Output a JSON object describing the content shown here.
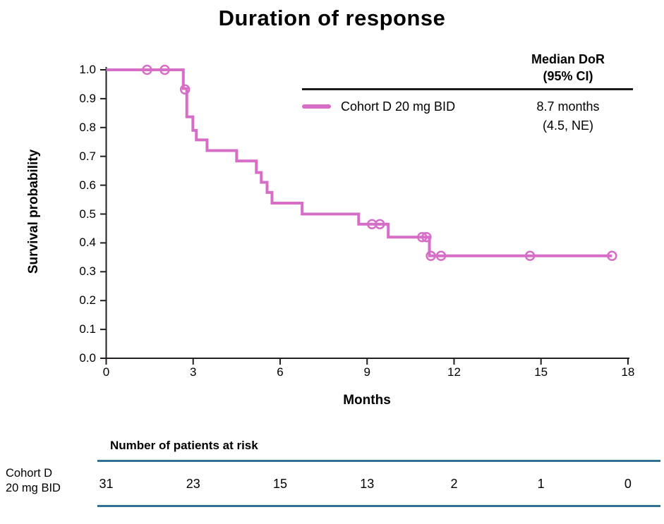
{
  "title": "Duration of response",
  "colors": {
    "series": "#d66ec8",
    "axis": "#231f20",
    "table_rule": "#2f7394",
    "text": "#000000"
  },
  "legend": {
    "header_line1": "Median DoR",
    "header_line2": "(95% CI)",
    "series_label": "Cohort D 20 mg BID",
    "median_line1": "8.7 months",
    "median_line2": "(4.5, NE)"
  },
  "risk_table": {
    "header": "Number of patients at risk",
    "row_label_line1": "Cohort D",
    "row_label_line2": "20 mg BID",
    "count_months": [
      0,
      3,
      6,
      9,
      12,
      15,
      18
    ],
    "counts": [
      "31",
      "23",
      "15",
      "13",
      "2",
      "1",
      "0"
    ]
  },
  "chart_data": {
    "type": "line",
    "subtype": "kaplan-meier-step-curve",
    "title": "Duration of response",
    "xlabel": "Months",
    "ylabel": "Survival probability",
    "xlim": [
      0,
      18
    ],
    "ylim": [
      0.0,
      1.0
    ],
    "x_ticks": [
      0,
      3,
      6,
      9,
      12,
      15,
      18
    ],
    "y_ticks": [
      "1.0",
      "0.9",
      "0.8",
      "0.7",
      "0.6",
      "0.5",
      "0.4",
      "0.3",
      "0.2",
      "0.1",
      "0.0"
    ],
    "grid": false,
    "legend_position": "top-right",
    "series": [
      {
        "name": "Cohort D 20 mg BID",
        "median_dor": "8.7 months (4.5, NE)",
        "steps": [
          {
            "t": 0,
            "s": 1.0
          },
          {
            "t": 2.66,
            "s": 0.935
          },
          {
            "t": 2.78,
            "s": 0.837
          },
          {
            "t": 2.99,
            "s": 0.79
          },
          {
            "t": 3.11,
            "s": 0.757
          },
          {
            "t": 3.48,
            "s": 0.72
          },
          {
            "t": 4.5,
            "s": 0.684
          },
          {
            "t": 5.18,
            "s": 0.644
          },
          {
            "t": 5.35,
            "s": 0.61
          },
          {
            "t": 5.55,
            "s": 0.575
          },
          {
            "t": 5.72,
            "s": 0.538
          },
          {
            "t": 6.76,
            "s": 0.5
          },
          {
            "t": 8.71,
            "s": 0.465
          },
          {
            "t": 9.73,
            "s": 0.42
          },
          {
            "t": 11.15,
            "s": 0.355
          }
        ],
        "end_time": 17.45,
        "censors": [
          {
            "t": 1.41,
            "s": 1.0
          },
          {
            "t": 2.02,
            "s": 1.0
          },
          {
            "t": 2.72,
            "s": 0.932
          },
          {
            "t": 9.17,
            "s": 0.465
          },
          {
            "t": 9.44,
            "s": 0.465
          },
          {
            "t": 10.9,
            "s": 0.42
          },
          {
            "t": 11.05,
            "s": 0.42
          },
          {
            "t": 11.2,
            "s": 0.355
          },
          {
            "t": 11.55,
            "s": 0.355
          },
          {
            "t": 14.62,
            "s": 0.355
          },
          {
            "t": 17.45,
            "s": 0.355
          }
        ]
      }
    ]
  }
}
